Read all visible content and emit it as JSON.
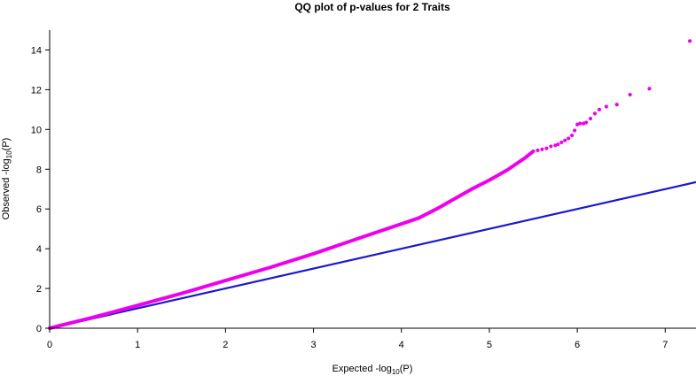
{
  "chart_data": {
    "type": "scatter",
    "title": "QQ plot of p-values for 2 Traits",
    "xlabel": {
      "prefix": "Expected  -log",
      "sub": "10",
      "suffix": "(P)"
    },
    "ylabel": {
      "prefix": "Observed  -log",
      "sub": "10",
      "suffix": "(P)"
    },
    "xlim": [
      0,
      7.35
    ],
    "ylim": [
      0,
      15
    ],
    "x_ticks": [
      0,
      1,
      2,
      3,
      4,
      5,
      6,
      7
    ],
    "y_ticks": [
      0,
      2,
      4,
      6,
      8,
      10,
      12,
      14
    ],
    "reference_line": {
      "x": [
        0,
        7.35
      ],
      "y": [
        0,
        7.35
      ],
      "color": "#1a1acc"
    },
    "series": [
      {
        "color": "#ee00ee",
        "curve": [
          [
            0.0,
            0.0
          ],
          [
            0.5,
            0.55
          ],
          [
            1.0,
            1.15
          ],
          [
            1.5,
            1.75
          ],
          [
            2.0,
            2.4
          ],
          [
            2.5,
            3.05
          ],
          [
            3.0,
            3.75
          ],
          [
            3.5,
            4.5
          ],
          [
            4.0,
            5.25
          ],
          [
            4.2,
            5.55
          ],
          [
            4.4,
            6.0
          ],
          [
            4.6,
            6.5
          ],
          [
            4.8,
            7.0
          ],
          [
            5.0,
            7.45
          ],
          [
            5.2,
            7.95
          ],
          [
            5.4,
            8.55
          ],
          [
            5.5,
            8.9
          ]
        ],
        "outliers": [
          [
            5.55,
            8.95
          ],
          [
            5.6,
            9.0
          ],
          [
            5.65,
            9.05
          ],
          [
            5.7,
            9.15
          ],
          [
            5.75,
            9.2
          ],
          [
            5.78,
            9.25
          ],
          [
            5.82,
            9.35
          ],
          [
            5.86,
            9.45
          ],
          [
            5.9,
            9.55
          ],
          [
            5.94,
            9.7
          ],
          [
            5.97,
            9.95
          ],
          [
            6.0,
            10.25
          ],
          [
            6.03,
            10.3
          ],
          [
            6.07,
            10.3
          ],
          [
            6.1,
            10.35
          ],
          [
            6.15,
            10.55
          ],
          [
            6.2,
            10.8
          ],
          [
            6.25,
            11.0
          ],
          [
            6.33,
            11.15
          ],
          [
            6.45,
            11.25
          ],
          [
            6.6,
            11.75
          ],
          [
            6.82,
            12.05
          ],
          [
            7.28,
            14.45
          ]
        ]
      }
    ],
    "grid": false,
    "legend": "none"
  }
}
